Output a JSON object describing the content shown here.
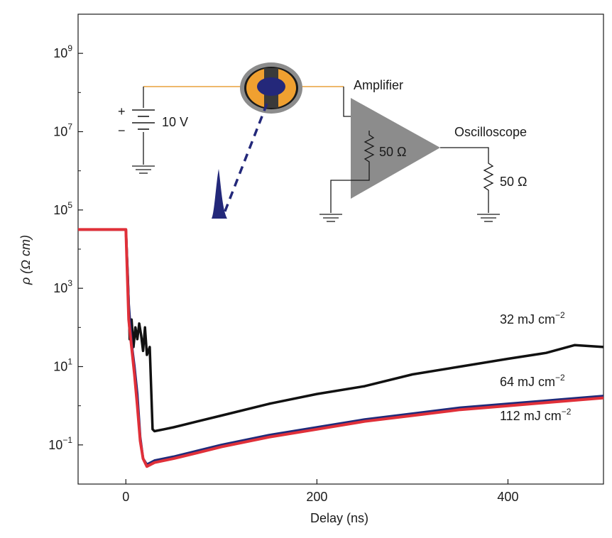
{
  "chart_data": {
    "type": "line",
    "title": "",
    "xlabel": "Delay (ns)",
    "ylabel": "ρ (Ω cm)",
    "xlim": [
      -50,
      500
    ],
    "ylim_log10": [
      -2,
      10
    ],
    "y_scale": "log",
    "grid": false,
    "x_ticks": [
      0,
      200,
      400
    ],
    "x_tick_labels": [
      "0",
      "200",
      "400"
    ],
    "y_ticks_log10": [
      -1,
      1,
      3,
      5,
      7,
      9
    ],
    "y_tick_labels": [
      {
        "base": "10",
        "exp": "−1"
      },
      {
        "base": "10",
        "exp": "1"
      },
      {
        "base": "10",
        "exp": "3"
      },
      {
        "base": "10",
        "exp": "5"
      },
      {
        "base": "10",
        "exp": "7"
      },
      {
        "base": "10",
        "exp": "9"
      }
    ],
    "series": [
      {
        "name": "32 mJ cm−2",
        "label_text": "32 mJ cm",
        "label_exp": "−2",
        "color": "#111111",
        "x": [
          -50,
          0,
          2,
          4,
          6,
          8,
          10,
          12,
          14,
          16,
          18,
          20,
          22,
          25,
          28,
          30,
          40,
          50,
          75,
          100,
          150,
          200,
          250,
          300,
          350,
          400,
          440,
          470,
          500
        ],
        "log10": [
          4.5,
          4.5,
          3.3,
          1.7,
          2.2,
          1.5,
          2.0,
          1.7,
          2.1,
          1.8,
          1.4,
          2.0,
          1.3,
          1.5,
          -0.6,
          -0.65,
          -0.6,
          -0.55,
          -0.4,
          -0.25,
          0.05,
          0.3,
          0.5,
          0.8,
          1.0,
          1.2,
          1.35,
          1.55,
          1.5
        ]
      },
      {
        "name": "64 mJ cm−2",
        "label_text": "64 mJ cm",
        "label_exp": "−2",
        "color": "#1f2a7a",
        "x": [
          -50,
          0,
          3,
          6,
          9,
          12,
          15,
          18,
          22,
          30,
          50,
          75,
          100,
          150,
          200,
          250,
          300,
          350,
          400,
          450,
          500
        ],
        "log10": [
          4.5,
          4.5,
          2.6,
          1.6,
          1.0,
          0.3,
          -0.8,
          -1.35,
          -1.5,
          -1.4,
          -1.3,
          -1.15,
          -1.0,
          -0.75,
          -0.55,
          -0.35,
          -0.2,
          -0.05,
          0.05,
          0.15,
          0.25
        ]
      },
      {
        "name": "112 mJ cm−2",
        "label_text": "112 mJ cm",
        "label_exp": "−2",
        "color": "#e03039",
        "x": [
          -50,
          0,
          3,
          6,
          9,
          12,
          15,
          18,
          22,
          30,
          50,
          75,
          100,
          150,
          200,
          250,
          300,
          350,
          400,
          450,
          500
        ],
        "log10": [
          4.5,
          4.5,
          2.2,
          1.5,
          0.8,
          0.0,
          -0.9,
          -1.35,
          -1.55,
          -1.45,
          -1.35,
          -1.2,
          -1.05,
          -0.8,
          -0.6,
          -0.4,
          -0.25,
          -0.1,
          0.0,
          0.1,
          0.2
        ]
      }
    ]
  },
  "inset": {
    "voltage_label": "10 V",
    "plus_sign": "+",
    "minus_sign": "−",
    "amplifier_label": "Amplifier",
    "amplifier_resistor_label": "50 Ω",
    "oscilloscope_label": "Oscilloscope",
    "oscilloscope_resistor_label": "50 Ω",
    "wire_color": "#e8a03c",
    "sample_color": "#f0a030",
    "electrode_color": "#2a2a7a",
    "laser_color": "#23287a",
    "amplifier_color": "#8c8c8c"
  }
}
